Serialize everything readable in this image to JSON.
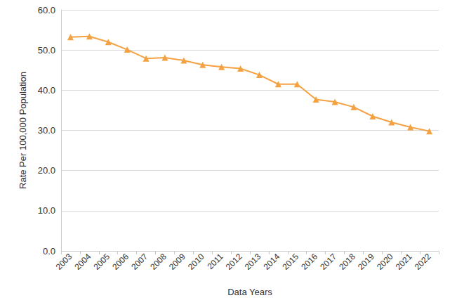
{
  "chart_data": {
    "type": "line",
    "x_label": "Data Years",
    "y_label": "Rate Per 100,000 Population",
    "categories": [
      "2003",
      "2004",
      "2005",
      "2006",
      "2007",
      "2008",
      "2009",
      "2010",
      "2011",
      "2012",
      "2013",
      "2014",
      "2015",
      "2016",
      "2017",
      "2018",
      "2019",
      "2020",
      "2021",
      "2022"
    ],
    "values": [
      53.2,
      53.4,
      52.0,
      50.1,
      47.9,
      48.1,
      47.4,
      46.3,
      45.8,
      45.4,
      43.8,
      41.5,
      41.5,
      37.7,
      37.1,
      35.8,
      33.5,
      32.0,
      30.8,
      29.8
    ],
    "color": "#f4a142",
    "marker": "triangle",
    "ylim": [
      0,
      60
    ],
    "yticks": [
      {
        "value": 0,
        "label": "0.0"
      },
      {
        "value": 10,
        "label": "10.0"
      },
      {
        "value": 20,
        "label": "20.0"
      },
      {
        "value": 30,
        "label": "30.0"
      },
      {
        "value": 40,
        "label": "40.0"
      },
      {
        "value": 50,
        "label": "50.0"
      },
      {
        "value": 60,
        "label": "60.0"
      }
    ],
    "grid": true
  }
}
